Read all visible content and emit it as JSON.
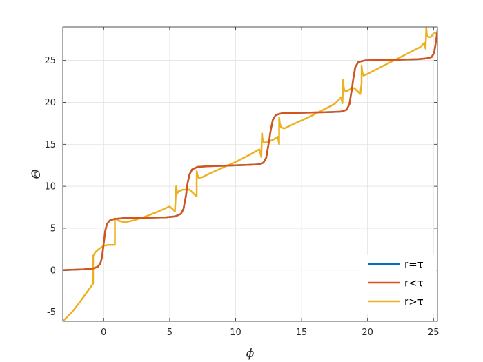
{
  "chart_data": {
    "type": "line",
    "title": "",
    "xlabel": "ϕ",
    "ylabel": "Θ",
    "xlim": [
      -3.1,
      25.3
    ],
    "ylim": [
      -6.1,
      29.0
    ],
    "xticks": [
      0,
      5,
      10,
      15,
      20,
      25
    ],
    "yticks": [
      -5,
      0,
      5,
      10,
      15,
      20,
      25
    ],
    "grid": true,
    "legend_position": "bottom-right",
    "series": [
      {
        "name": "r=τ",
        "color": "#0072BD",
        "x": [
          -3.1,
          -1.5,
          -0.8,
          -0.45,
          -0.25,
          -0.12,
          -0.05,
          0.0,
          0.05,
          0.12,
          0.25,
          0.45,
          0.8,
          1.5,
          3.0,
          4.7,
          5.4,
          5.85,
          6.05,
          6.18,
          6.25,
          6.28,
          6.31,
          6.38,
          6.5,
          6.7,
          7.1,
          8.0,
          10.0,
          11.0,
          11.7,
          12.1,
          12.32,
          12.45,
          12.53,
          12.57,
          12.61,
          12.69,
          12.82,
          13.05,
          13.5,
          14.5,
          16.0,
          17.3,
          18.0,
          18.4,
          18.63,
          18.76,
          18.82,
          18.85,
          18.88,
          18.94,
          19.07,
          19.3,
          19.8,
          21.0,
          22.5,
          23.8,
          24.5,
          24.85,
          25.05,
          25.18,
          25.3
        ],
        "values": [
          0.0,
          0.1,
          0.2,
          0.4,
          0.8,
          1.6,
          2.5,
          3.14,
          3.8,
          4.7,
          5.5,
          5.9,
          6.1,
          6.2,
          6.25,
          6.3,
          6.4,
          6.7,
          7.3,
          8.4,
          9.0,
          9.42,
          9.9,
          10.5,
          11.4,
          12.0,
          12.3,
          12.4,
          12.5,
          12.55,
          12.6,
          12.8,
          13.4,
          14.6,
          15.3,
          15.7,
          16.2,
          16.9,
          17.9,
          18.5,
          18.7,
          18.75,
          18.8,
          18.85,
          18.9,
          19.1,
          19.8,
          21.1,
          21.6,
          22.0,
          22.4,
          23.0,
          24.2,
          24.8,
          25.0,
          25.05,
          25.1,
          25.15,
          25.25,
          25.4,
          25.9,
          27.2,
          28.6
        ]
      },
      {
        "name": "r<τ",
        "color": "#D95319",
        "x": [
          -3.1,
          -1.5,
          -0.8,
          -0.45,
          -0.25,
          -0.12,
          -0.05,
          0.0,
          0.05,
          0.12,
          0.25,
          0.45,
          0.8,
          1.5,
          3.0,
          4.7,
          5.4,
          5.85,
          6.05,
          6.18,
          6.25,
          6.28,
          6.31,
          6.38,
          6.5,
          6.7,
          7.1,
          8.0,
          10.0,
          11.0,
          11.7,
          12.1,
          12.32,
          12.45,
          12.53,
          12.57,
          12.61,
          12.69,
          12.82,
          13.05,
          13.5,
          14.5,
          16.0,
          17.3,
          18.0,
          18.4,
          18.63,
          18.76,
          18.82,
          18.85,
          18.88,
          18.94,
          19.07,
          19.3,
          19.8,
          21.0,
          22.5,
          23.8,
          24.5,
          24.85,
          25.05,
          25.18,
          25.3
        ],
        "values": [
          0.0,
          0.1,
          0.2,
          0.4,
          0.8,
          1.6,
          2.5,
          3.14,
          3.8,
          4.7,
          5.5,
          5.9,
          6.1,
          6.2,
          6.25,
          6.3,
          6.4,
          6.7,
          7.3,
          8.4,
          9.0,
          9.42,
          9.9,
          10.5,
          11.4,
          12.0,
          12.3,
          12.4,
          12.5,
          12.55,
          12.6,
          12.8,
          13.4,
          14.6,
          15.3,
          15.7,
          16.2,
          16.9,
          17.9,
          18.5,
          18.7,
          18.75,
          18.8,
          18.85,
          18.9,
          19.1,
          19.8,
          21.1,
          21.6,
          22.0,
          22.4,
          23.0,
          24.2,
          24.8,
          25.0,
          25.05,
          25.1,
          25.15,
          25.25,
          25.4,
          25.9,
          27.2,
          28.6
        ]
      },
      {
        "name": "r>τ",
        "color": "#EDB120",
        "x": [
          -3.1,
          -2.4,
          -1.8,
          -1.3,
          -0.8,
          -0.8,
          -0.6,
          -0.3,
          0.0,
          0.3,
          0.6,
          0.85,
          0.85,
          1.1,
          1.6,
          2.2,
          3.0,
          4.0,
          5.0,
          5.4,
          5.5,
          5.55,
          5.6,
          5.7,
          6.0,
          6.5,
          6.9,
          7.05,
          7.05,
          7.1,
          7.2,
          7.5,
          8.0,
          9.0,
          10.0,
          11.0,
          11.8,
          11.95,
          12.0,
          12.05,
          12.1,
          12.2,
          12.5,
          12.9,
          13.2,
          13.3,
          13.3,
          13.35,
          13.45,
          13.7,
          14.5,
          15.5,
          16.5,
          17.5,
          18.0,
          18.1,
          18.15,
          18.2,
          18.25,
          18.4,
          18.7,
          19.0,
          19.45,
          19.55,
          19.55,
          19.6,
          19.7,
          20.0,
          21.0,
          22.0,
          23.0,
          24.0,
          24.3,
          24.4,
          24.45,
          24.5,
          24.6,
          24.8,
          25.0,
          25.3
        ],
        "values": [
          -6.1,
          -5.0,
          -3.8,
          -2.7,
          -1.6,
          1.7,
          2.2,
          2.6,
          2.9,
          3.0,
          3.0,
          3.0,
          6.2,
          5.9,
          5.7,
          5.9,
          6.3,
          6.9,
          7.6,
          7.0,
          10.0,
          9.4,
          9.2,
          9.4,
          9.6,
          9.6,
          9.0,
          8.8,
          11.8,
          11.4,
          11.0,
          11.1,
          11.5,
          12.2,
          12.9,
          13.7,
          14.4,
          13.5,
          16.3,
          15.6,
          15.3,
          15.2,
          15.3,
          15.6,
          15.9,
          15.0,
          18.2,
          17.5,
          17.0,
          16.9,
          17.5,
          18.2,
          19.0,
          19.8,
          20.6,
          19.9,
          22.7,
          21.8,
          21.4,
          21.3,
          21.6,
          21.7,
          21.0,
          22.3,
          24.4,
          23.6,
          23.2,
          23.4,
          24.2,
          25.0,
          25.8,
          26.6,
          27.1,
          26.4,
          28.9,
          28.0,
          27.8,
          27.8,
          28.2,
          28.3
        ]
      }
    ]
  }
}
